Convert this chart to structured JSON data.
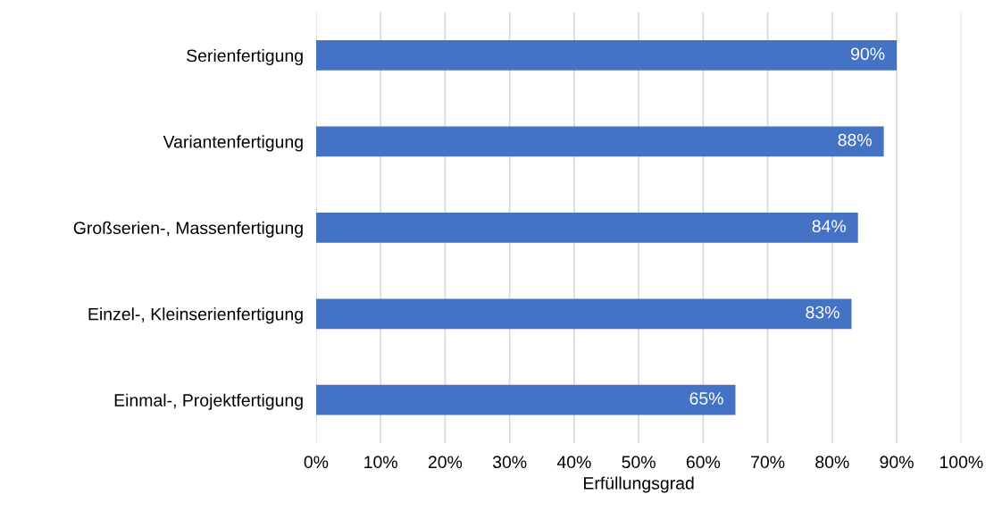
{
  "chart_data": {
    "type": "bar",
    "orientation": "horizontal",
    "xlabel": "Erfüllungsgrad",
    "categories": [
      "Serienfertigung",
      "Variantenfertigung",
      "Großserien-, Massenfertigung",
      "Einzel-, Kleinserienfertigung",
      "Einmal-, Projektfertigung"
    ],
    "values": [
      90,
      88,
      84,
      83,
      65
    ],
    "value_labels": [
      "90%",
      "88%",
      "84%",
      "83%",
      "65%"
    ],
    "color": "#4472c4",
    "xlim": [
      0,
      100
    ],
    "xticks": [
      {
        "value": 0,
        "label": "0%"
      },
      {
        "value": 10,
        "label": "10%"
      },
      {
        "value": 20,
        "label": "20%"
      },
      {
        "value": 30,
        "label": "30%"
      },
      {
        "value": 40,
        "label": "40%"
      },
      {
        "value": 50,
        "label": "50%"
      },
      {
        "value": 60,
        "label": "60%"
      },
      {
        "value": 70,
        "label": "70%"
      },
      {
        "value": 80,
        "label": "80%"
      },
      {
        "value": 90,
        "label": "90%"
      },
      {
        "value": 100,
        "label": "100%"
      }
    ],
    "grid": "x",
    "legend": false
  }
}
